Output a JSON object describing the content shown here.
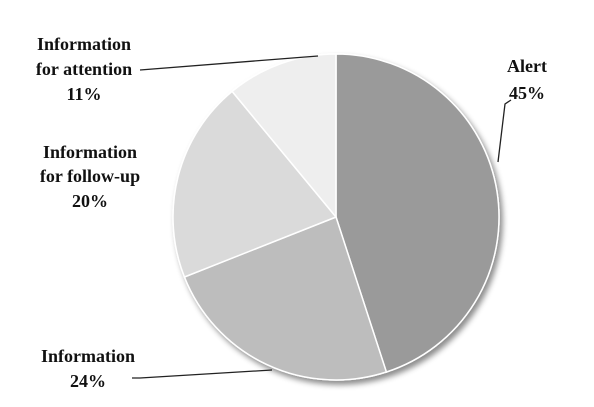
{
  "chart_data": {
    "type": "pie",
    "start_angle_deg": 0,
    "direction": "clockwise",
    "three_d": true,
    "slices": [
      {
        "label_lines": [
          "Alert"
        ],
        "value": 45,
        "value_label": "45%",
        "color": "#9a9a9a"
      },
      {
        "label_lines": [
          "Information"
        ],
        "value": 24,
        "value_label": "24%",
        "color": "#bdbdbd"
      },
      {
        "label_lines": [
          "Information",
          "for follow-up"
        ],
        "value": 20,
        "value_label": "20%",
        "color": "#dadada"
      },
      {
        "label_lines": [
          "Information",
          "for attention"
        ],
        "value": 11,
        "value_label": "11%",
        "color": "#eeeeee"
      }
    ],
    "legend": "none"
  }
}
